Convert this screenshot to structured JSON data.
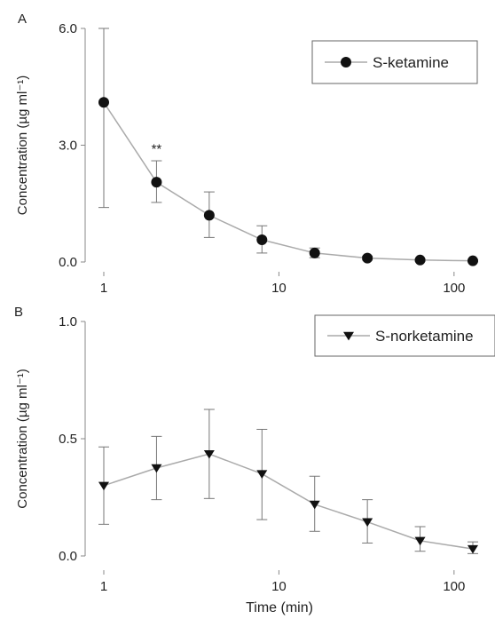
{
  "colors": {
    "axis": "#888888",
    "line": "#aaaaaa",
    "marker": "#111111",
    "errorbar": "#777777",
    "text": "#222222"
  },
  "x_axis_label": "Time (min)",
  "chart_data": [
    {
      "panel_label": "A",
      "type": "line",
      "xscale": "log",
      "xlim": [
        1,
        128
      ],
      "ylim": [
        0,
        6
      ],
      "x_ticks": [
        {
          "value": 1,
          "label": "1"
        },
        {
          "value": 10,
          "label": "10"
        },
        {
          "value": 100,
          "label": "100"
        }
      ],
      "y_ticks": [
        {
          "value": 0,
          "label": "0.0"
        },
        {
          "value": 3,
          "label": "3.0"
        },
        {
          "value": 6,
          "label": "6.0"
        }
      ],
      "ylabel": "Concentration (µg ml⁻¹)",
      "marker": "circle",
      "legend_position": "top-right",
      "series": [
        {
          "name": "S-ketamine",
          "x": [
            1,
            2,
            4,
            8,
            16,
            32,
            64,
            128
          ],
          "y": [
            4.1,
            2.05,
            1.2,
            0.57,
            0.23,
            0.1,
            0.05,
            0.03
          ],
          "err_low": [
            2.7,
            0.52,
            0.57,
            0.34,
            0.12,
            0.05,
            0.03,
            0.02
          ],
          "err_high": [
            1.9,
            0.55,
            0.6,
            0.36,
            0.13,
            0.05,
            0.03,
            0.02
          ]
        }
      ],
      "annotations": [
        {
          "text": "**",
          "x": 2,
          "y": 2.8
        }
      ]
    },
    {
      "panel_label": "B",
      "type": "line",
      "xscale": "log",
      "xlim": [
        1,
        128
      ],
      "ylim": [
        0,
        1
      ],
      "x_ticks": [
        {
          "value": 1,
          "label": "1"
        },
        {
          "value": 10,
          "label": "10"
        },
        {
          "value": 100,
          "label": "100"
        }
      ],
      "y_ticks": [
        {
          "value": 0,
          "label": "0.0"
        },
        {
          "value": 0.5,
          "label": "0.5"
        },
        {
          "value": 1,
          "label": "1.0"
        }
      ],
      "ylabel": "Concentration (µg ml⁻¹)",
      "marker": "triangle-down",
      "legend_position": "top-right",
      "series": [
        {
          "name": "S-norketamine",
          "x": [
            1,
            2,
            4,
            8,
            16,
            32,
            64,
            128
          ],
          "y": [
            0.3,
            0.375,
            0.435,
            0.35,
            0.22,
            0.145,
            0.065,
            0.03
          ],
          "err_low": [
            0.165,
            0.135,
            0.19,
            0.195,
            0.115,
            0.09,
            0.045,
            0.02
          ],
          "err_high": [
            0.165,
            0.135,
            0.19,
            0.19,
            0.12,
            0.095,
            0.06,
            0.03
          ]
        }
      ],
      "annotations": []
    }
  ]
}
